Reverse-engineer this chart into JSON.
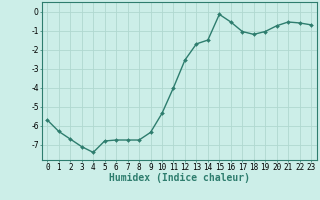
{
  "x": [
    0,
    1,
    2,
    3,
    4,
    5,
    6,
    7,
    8,
    9,
    10,
    11,
    12,
    13,
    14,
    15,
    16,
    17,
    18,
    19,
    20,
    21,
    22,
    23
  ],
  "y": [
    -5.7,
    -6.3,
    -6.7,
    -7.1,
    -7.4,
    -6.8,
    -6.75,
    -6.75,
    -6.75,
    -6.35,
    -5.35,
    -4.0,
    -2.55,
    -1.7,
    -1.5,
    -0.15,
    -0.55,
    -1.05,
    -1.2,
    -1.05,
    -0.75,
    -0.55,
    -0.6,
    -0.7
  ],
  "line_color": "#2e7d6e",
  "marker": "D",
  "marker_size": 2.0,
  "line_width": 1.0,
  "xlabel": "Humidex (Indice chaleur)",
  "xlabel_fontsize": 7,
  "xlim": [
    -0.5,
    23.5
  ],
  "ylim": [
    -7.8,
    0.5
  ],
  "yticks": [
    0,
    -1,
    -2,
    -3,
    -4,
    -5,
    -6,
    -7
  ],
  "xticks": [
    0,
    1,
    2,
    3,
    4,
    5,
    6,
    7,
    8,
    9,
    10,
    11,
    12,
    13,
    14,
    15,
    16,
    17,
    18,
    19,
    20,
    21,
    22,
    23
  ],
  "background_color": "#cceee8",
  "grid_color": "#b0d8d0",
  "tick_fontsize": 5.5,
  "spine_color": "#2e7d6e"
}
